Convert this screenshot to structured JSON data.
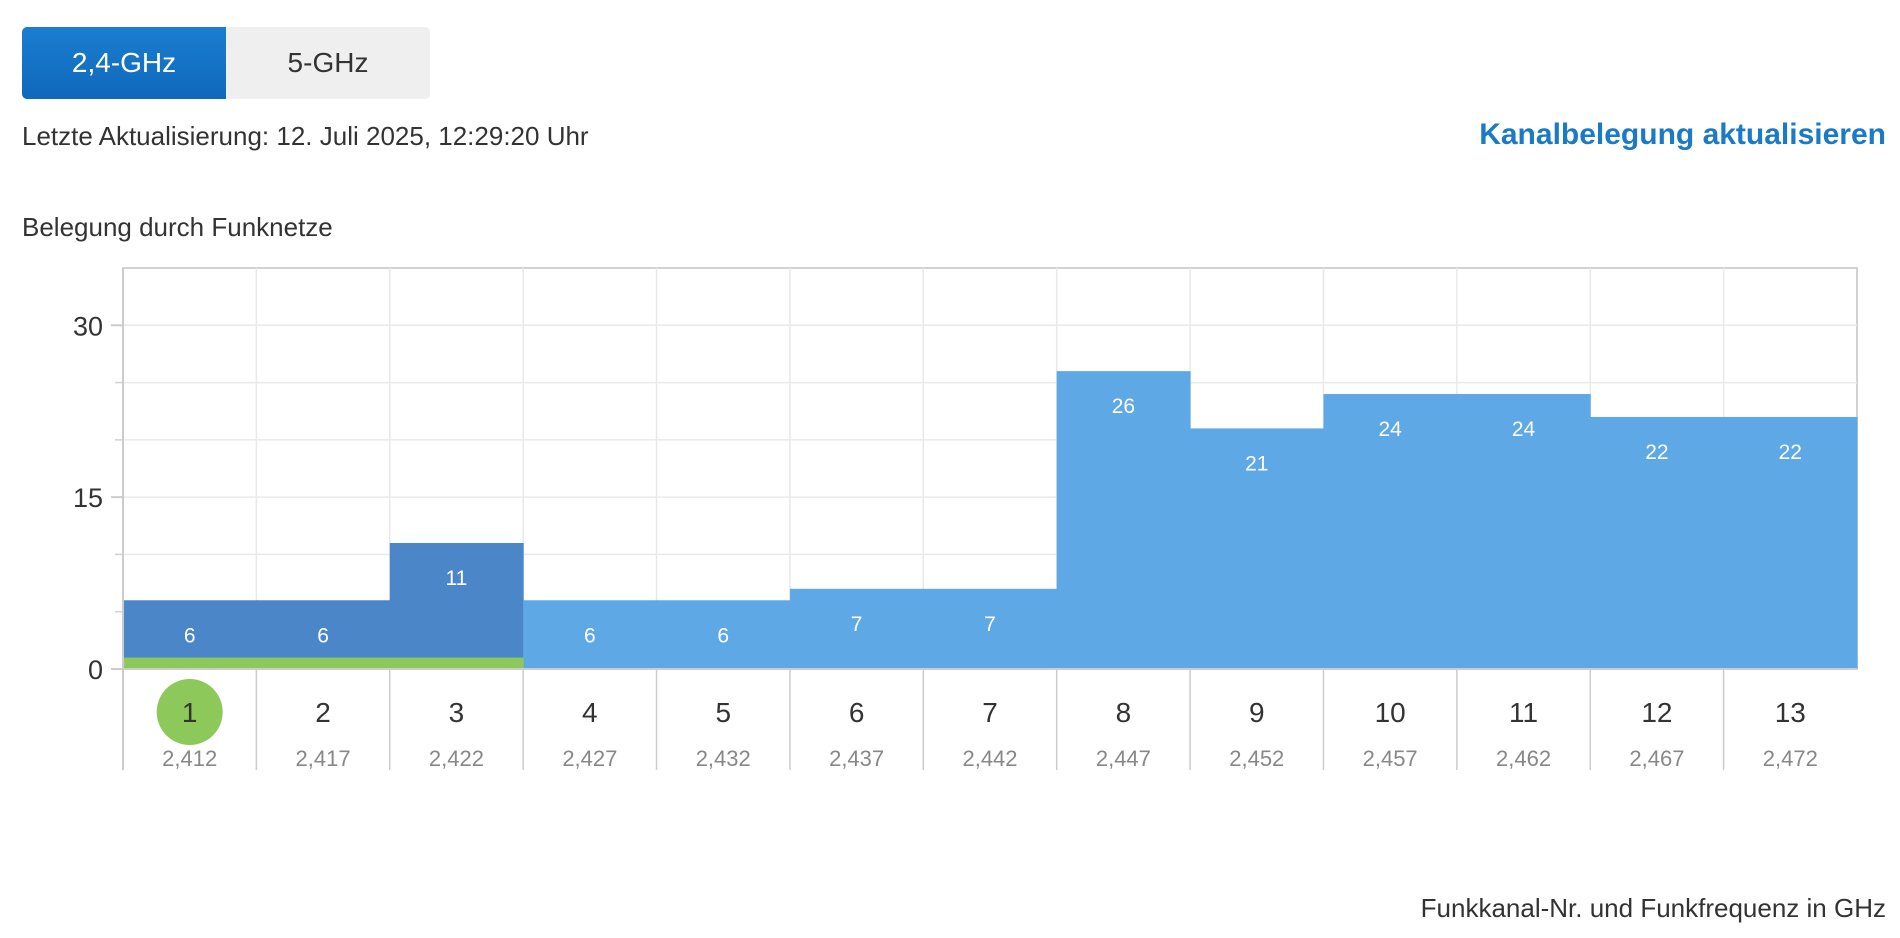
{
  "tabs": [
    {
      "label": "2,4-GHz",
      "active": true
    },
    {
      "label": "5-GHz",
      "active": false
    }
  ],
  "status": {
    "last_update": "Letzte Aktualisierung: 12. Juli 2025, 12:29:20 Uhr"
  },
  "actions": {
    "refresh_label": "Kanalbelegung aktualisieren"
  },
  "colors": {
    "accent": "#1a7ac6",
    "own_network": "#8dc95a",
    "occupied_own_range": "#4a86c8",
    "occupied_other": "#5fa8e6"
  },
  "chart_data": {
    "type": "bar",
    "title": "Belegung durch Funknetze",
    "xlabel": "Funkkanal-Nr. und Funkfrequenz in GHz",
    "ylabel": "",
    "ylim": [
      0,
      35
    ],
    "yticks": [
      0,
      15,
      30
    ],
    "grid": true,
    "selected_channel": "1",
    "categories": [
      "1",
      "2",
      "3",
      "4",
      "5",
      "6",
      "7",
      "8",
      "9",
      "10",
      "11",
      "12",
      "13"
    ],
    "frequencies": [
      "2,412",
      "2,417",
      "2,422",
      "2,427",
      "2,432",
      "2,437",
      "2,442",
      "2,447",
      "2,452",
      "2,457",
      "2,462",
      "2,467",
      "2,472"
    ],
    "values": [
      6,
      6,
      11,
      6,
      6,
      7,
      7,
      26,
      21,
      24,
      24,
      22,
      22
    ],
    "own_network_channels": [
      "1",
      "2",
      "3"
    ],
    "own_network_level": 1
  }
}
